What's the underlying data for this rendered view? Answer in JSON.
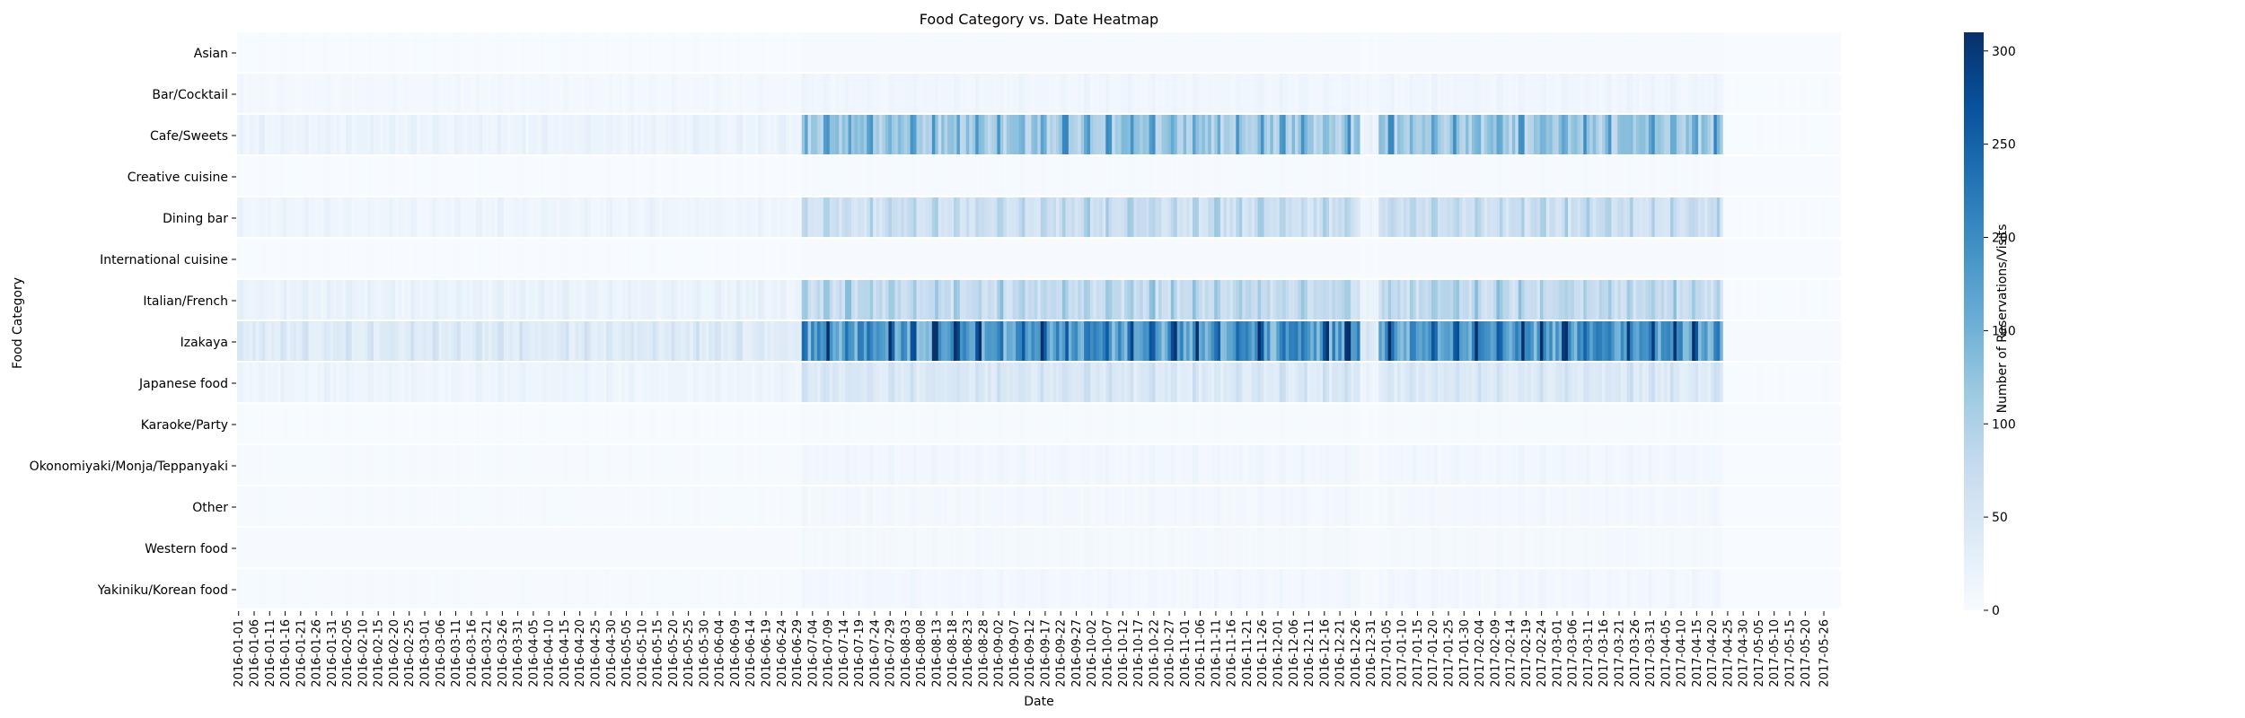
{
  "chart_data": {
    "type": "heatmap",
    "title": "Food Category vs. Date Heatmap",
    "xlabel": "Date",
    "ylabel": "Food Category",
    "colorbar_label": "Number of Reservations/Visits",
    "colormap": "Blues",
    "colors": {
      "low": "#f7fbff",
      "high": "#08306b"
    },
    "value_range": [
      0,
      310
    ],
    "colorbar_ticks": [
      0,
      50,
      100,
      150,
      200,
      250,
      300
    ],
    "date_start": "2016-01-01",
    "date_end": "2017-05-31",
    "x_tick_labels": [
      "2016-01-01",
      "2016-01-06",
      "2016-01-11",
      "2016-01-16",
      "2016-01-21",
      "2016-01-26",
      "2016-01-31",
      "2016-02-05",
      "2016-02-10",
      "2016-02-15",
      "2016-02-20",
      "2016-02-25",
      "2016-03-01",
      "2016-03-06",
      "2016-03-11",
      "2016-03-16",
      "2016-03-21",
      "2016-03-26",
      "2016-03-31",
      "2016-04-05",
      "2016-04-10",
      "2016-04-15",
      "2016-04-20",
      "2016-04-25",
      "2016-04-30",
      "2016-05-05",
      "2016-05-10",
      "2016-05-15",
      "2016-05-20",
      "2016-05-25",
      "2016-05-30",
      "2016-06-04",
      "2016-06-09",
      "2016-06-14",
      "2016-06-19",
      "2016-06-24",
      "2016-06-29",
      "2016-07-04",
      "2016-07-09",
      "2016-07-14",
      "2016-07-19",
      "2016-07-24",
      "2016-07-29",
      "2016-08-03",
      "2016-08-08",
      "2016-08-13",
      "2016-08-18",
      "2016-08-23",
      "2016-08-28",
      "2016-09-02",
      "2016-09-07",
      "2016-09-12",
      "2016-09-17",
      "2016-09-22",
      "2016-09-27",
      "2016-10-02",
      "2016-10-07",
      "2016-10-12",
      "2016-10-17",
      "2016-10-22",
      "2016-10-27",
      "2016-11-01",
      "2016-11-06",
      "2016-11-11",
      "2016-11-16",
      "2016-11-21",
      "2016-11-26",
      "2016-12-01",
      "2016-12-06",
      "2016-12-11",
      "2016-12-16",
      "2016-12-21",
      "2016-12-26",
      "2016-12-31",
      "2017-01-05",
      "2017-01-10",
      "2017-01-15",
      "2017-01-20",
      "2017-01-25",
      "2017-01-30",
      "2017-02-04",
      "2017-02-09",
      "2017-02-14",
      "2017-02-19",
      "2017-02-24",
      "2017-03-01",
      "2017-03-06",
      "2017-03-11",
      "2017-03-16",
      "2017-03-21",
      "2017-03-26",
      "2017-03-31",
      "2017-04-05",
      "2017-04-10",
      "2017-04-15",
      "2017-04-20",
      "2017-04-25",
      "2017-04-30",
      "2017-05-05",
      "2017-05-10",
      "2017-05-15",
      "2017-05-20",
      "2017-05-26"
    ],
    "categories": [
      {
        "name": "Asian",
        "pre_jul2016": 1,
        "peak_period": 2,
        "post_apr2017": 0
      },
      {
        "name": "Bar/Cocktail",
        "pre_jul2016": 8,
        "peak_period": 12,
        "post_apr2017": 1
      },
      {
        "name": "Cafe/Sweets",
        "pre_jul2016": 18,
        "peak_period": 120,
        "post_apr2017": 1
      },
      {
        "name": "Creative cuisine",
        "pre_jul2016": 1,
        "peak_period": 3,
        "post_apr2017": 0
      },
      {
        "name": "Dining bar",
        "pre_jul2016": 15,
        "peak_period": 70,
        "post_apr2017": 1
      },
      {
        "name": "International cuisine",
        "pre_jul2016": 1,
        "peak_period": 2,
        "post_apr2017": 0
      },
      {
        "name": "Italian/French",
        "pre_jul2016": 20,
        "peak_period": 80,
        "post_apr2017": 1
      },
      {
        "name": "Izakaya",
        "pre_jul2016": 40,
        "peak_period": 190,
        "post_apr2017": 2
      },
      {
        "name": "Japanese food",
        "pre_jul2016": 15,
        "peak_period": 45,
        "post_apr2017": 1
      },
      {
        "name": "Karaoke/Party",
        "pre_jul2016": 1,
        "peak_period": 3,
        "post_apr2017": 0
      },
      {
        "name": "Okonomiyaki/Monja/Teppanyaki",
        "pre_jul2016": 3,
        "peak_period": 10,
        "post_apr2017": 0
      },
      {
        "name": "Other",
        "pre_jul2016": 3,
        "peak_period": 8,
        "post_apr2017": 0
      },
      {
        "name": "Western food",
        "pre_jul2016": 2,
        "peak_period": 6,
        "post_apr2017": 0
      },
      {
        "name": "Yakiniku/Korean food",
        "pre_jul2016": 3,
        "peak_period": 9,
        "post_apr2017": 0
      }
    ]
  }
}
